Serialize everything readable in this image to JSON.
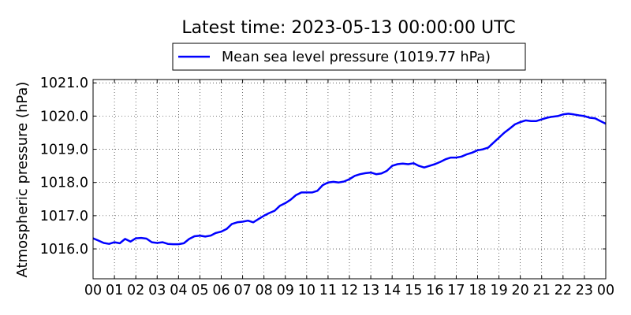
{
  "chart_data": {
    "type": "line",
    "title": "Latest time: 2023-05-13 00:00:00 UTC",
    "xlabel": "",
    "ylabel": "Atmospheric pressure (hPa)",
    "xlim": [
      0,
      24
    ],
    "ylim": [
      1015.1,
      1021.1
    ],
    "grid": true,
    "legend": "top-center",
    "x_ticks": [
      "00",
      "01",
      "02",
      "03",
      "04",
      "05",
      "06",
      "07",
      "08",
      "09",
      "10",
      "11",
      "12",
      "13",
      "14",
      "15",
      "16",
      "17",
      "18",
      "19",
      "20",
      "21",
      "22",
      "23",
      "00"
    ],
    "y_ticks": [
      "1016.0",
      "1017.0",
      "1018.0",
      "1019.0",
      "1020.0",
      "1021.0"
    ],
    "series": [
      {
        "name": "Mean sea level pressure (1019.77 hPa)",
        "color": "#0000ff",
        "x": [
          0,
          0.25,
          0.5,
          0.75,
          1,
          1.25,
          1.5,
          1.75,
          2,
          2.25,
          2.5,
          2.75,
          3,
          3.25,
          3.5,
          3.75,
          4,
          4.25,
          4.5,
          4.75,
          5,
          5.25,
          5.5,
          5.75,
          6,
          6.25,
          6.5,
          6.75,
          7,
          7.25,
          7.5,
          7.75,
          8,
          8.25,
          8.5,
          8.75,
          9,
          9.25,
          9.5,
          9.75,
          10,
          10.25,
          10.5,
          10.75,
          11,
          11.25,
          11.5,
          11.75,
          12,
          12.25,
          12.5,
          12.75,
          13,
          13.25,
          13.5,
          13.75,
          14,
          14.25,
          14.5,
          14.75,
          15,
          15.25,
          15.5,
          15.75,
          16,
          16.25,
          16.5,
          16.75,
          17,
          17.25,
          17.5,
          17.75,
          18,
          18.25,
          18.5,
          18.75,
          19,
          19.25,
          19.5,
          19.75,
          20,
          20.25,
          20.5,
          20.75,
          21,
          21.25,
          21.5,
          21.75,
          22,
          22.25,
          22.5,
          22.75,
          23,
          23.25,
          23.5,
          23.75,
          24
        ],
        "values": [
          1016.32,
          1016.25,
          1016.18,
          1016.15,
          1016.2,
          1016.17,
          1016.3,
          1016.22,
          1016.32,
          1016.33,
          1016.31,
          1016.2,
          1016.18,
          1016.2,
          1016.15,
          1016.14,
          1016.14,
          1016.17,
          1016.3,
          1016.38,
          1016.4,
          1016.37,
          1016.4,
          1016.48,
          1016.52,
          1016.6,
          1016.75,
          1016.8,
          1016.82,
          1016.85,
          1016.8,
          1016.9,
          1017.0,
          1017.08,
          1017.15,
          1017.3,
          1017.38,
          1017.48,
          1017.62,
          1017.7,
          1017.7,
          1017.7,
          1017.75,
          1017.92,
          1018.0,
          1018.02,
          1018.0,
          1018.03,
          1018.1,
          1018.2,
          1018.25,
          1018.28,
          1018.3,
          1018.25,
          1018.27,
          1018.35,
          1018.5,
          1018.55,
          1018.57,
          1018.55,
          1018.58,
          1018.5,
          1018.45,
          1018.5,
          1018.55,
          1018.62,
          1018.7,
          1018.75,
          1018.75,
          1018.78,
          1018.85,
          1018.9,
          1018.97,
          1019.0,
          1019.05,
          1019.2,
          1019.35,
          1019.5,
          1019.62,
          1019.75,
          1019.82,
          1019.87,
          1019.85,
          1019.85,
          1019.9,
          1019.95,
          1019.98,
          1020.0,
          1020.05,
          1020.07,
          1020.05,
          1020.02,
          1020.0,
          1019.95,
          1019.93,
          1019.85,
          1019.77
        ]
      }
    ]
  }
}
